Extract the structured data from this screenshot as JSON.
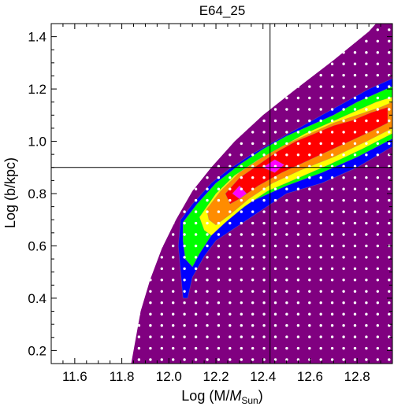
{
  "chart_data": {
    "type": "heatmap",
    "title": "E64_25",
    "xlabel_main": "Log (M/",
    "xlabel_italic": "M",
    "xlabel_sub": "Sun",
    "xlabel_close": ")",
    "ylabel": "Log (b/kpc)",
    "xlim": [
      11.5,
      12.95
    ],
    "ylim": [
      0.15,
      1.45
    ],
    "x_ticks": [
      "11.6",
      "11.8",
      "12.0",
      "12.2",
      "12.4",
      "12.6",
      "12.8"
    ],
    "y_ticks": [
      "0.2",
      "0.4",
      "0.6",
      "0.8",
      "1.0",
      "1.2",
      "1.4"
    ],
    "reference_lines": {
      "x": 12.43,
      "y": 0.9
    },
    "grid": false,
    "dot_grid": {
      "x_start": 11.68,
      "x_step": 0.0483,
      "y_start": 0.165,
      "y_step": 0.0435,
      "color": "#ffffff"
    },
    "allowed_region": {
      "color": "#800080",
      "boundary": [
        [
          11.84,
          0.15
        ],
        [
          11.86,
          0.25
        ],
        [
          11.88,
          0.35
        ],
        [
          11.92,
          0.47
        ],
        [
          11.97,
          0.59
        ],
        [
          12.03,
          0.7
        ],
        [
          12.1,
          0.81
        ],
        [
          12.18,
          0.9
        ],
        [
          12.28,
          1.0
        ],
        [
          12.4,
          1.1
        ],
        [
          12.54,
          1.2
        ],
        [
          12.7,
          1.31
        ],
        [
          12.85,
          1.42
        ],
        [
          12.88,
          1.45
        ],
        [
          12.95,
          1.45
        ],
        [
          12.95,
          0.15
        ]
      ]
    },
    "contour_levels": [
      {
        "color": "#0000ff",
        "polygon": [
          [
            12.05,
            0.7
          ],
          [
            12.1,
            0.76
          ],
          [
            12.18,
            0.84
          ],
          [
            12.25,
            0.89
          ],
          [
            12.35,
            0.95
          ],
          [
            12.45,
            1.0
          ],
          [
            12.55,
            1.05
          ],
          [
            12.65,
            1.1
          ],
          [
            12.75,
            1.15
          ],
          [
            12.85,
            1.2
          ],
          [
            12.95,
            1.24
          ],
          [
            12.95,
            0.98
          ],
          [
            12.8,
            0.9
          ],
          [
            12.65,
            0.84
          ],
          [
            12.5,
            0.8
          ],
          [
            12.4,
            0.74
          ],
          [
            12.3,
            0.68
          ],
          [
            12.2,
            0.62
          ],
          [
            12.15,
            0.56
          ],
          [
            12.1,
            0.48
          ],
          [
            12.08,
            0.4
          ],
          [
            12.06,
            0.4
          ],
          [
            12.05,
            0.5
          ],
          [
            12.04,
            0.6
          ]
        ]
      },
      {
        "color": "#00ff00",
        "polygon": [
          [
            12.06,
            0.69
          ],
          [
            12.12,
            0.76
          ],
          [
            12.2,
            0.84
          ],
          [
            12.3,
            0.91
          ],
          [
            12.4,
            0.97
          ],
          [
            12.5,
            1.02
          ],
          [
            12.6,
            1.06
          ],
          [
            12.7,
            1.1
          ],
          [
            12.8,
            1.15
          ],
          [
            12.9,
            1.19
          ],
          [
            12.95,
            1.21
          ],
          [
            12.95,
            1.01
          ],
          [
            12.8,
            0.94
          ],
          [
            12.65,
            0.88
          ],
          [
            12.5,
            0.83
          ],
          [
            12.35,
            0.77
          ],
          [
            12.25,
            0.7
          ],
          [
            12.18,
            0.64
          ],
          [
            12.13,
            0.57
          ],
          [
            12.1,
            0.52
          ],
          [
            12.07,
            0.55
          ],
          [
            12.06,
            0.62
          ]
        ]
      },
      {
        "color": "#ffff00",
        "polygon": [
          [
            12.13,
            0.71
          ],
          [
            12.2,
            0.8
          ],
          [
            12.28,
            0.87
          ],
          [
            12.38,
            0.93
          ],
          [
            12.48,
            0.98
          ],
          [
            12.58,
            1.03
          ],
          [
            12.68,
            1.07
          ],
          [
            12.78,
            1.11
          ],
          [
            12.88,
            1.15
          ],
          [
            12.95,
            1.17
          ],
          [
            12.95,
            1.03
          ],
          [
            12.82,
            0.97
          ],
          [
            12.68,
            0.91
          ],
          [
            12.55,
            0.86
          ],
          [
            12.42,
            0.81
          ],
          [
            12.32,
            0.75
          ],
          [
            12.24,
            0.69
          ],
          [
            12.18,
            0.64
          ],
          [
            12.15,
            0.66
          ]
        ]
      },
      {
        "color": "#ff8c00",
        "polygon": [
          [
            12.16,
            0.74
          ],
          [
            12.22,
            0.81
          ],
          [
            12.3,
            0.88
          ],
          [
            12.4,
            0.94
          ],
          [
            12.5,
            0.99
          ],
          [
            12.6,
            1.03
          ],
          [
            12.7,
            1.07
          ],
          [
            12.8,
            1.1
          ],
          [
            12.9,
            1.13
          ],
          [
            12.95,
            1.15
          ],
          [
            12.95,
            1.05
          ],
          [
            12.84,
            1.0
          ],
          [
            12.7,
            0.94
          ],
          [
            12.56,
            0.89
          ],
          [
            12.44,
            0.84
          ],
          [
            12.34,
            0.78
          ],
          [
            12.26,
            0.72
          ],
          [
            12.2,
            0.68
          ],
          [
            12.17,
            0.7
          ]
        ]
      },
      {
        "color": "#ff0000",
        "polygon": [
          [
            12.24,
            0.8
          ],
          [
            12.3,
            0.86
          ],
          [
            12.38,
            0.91
          ],
          [
            12.46,
            0.96
          ],
          [
            12.54,
            1.0
          ],
          [
            12.62,
            1.03
          ],
          [
            12.7,
            1.06
          ],
          [
            12.78,
            1.08
          ],
          [
            12.86,
            1.11
          ],
          [
            12.93,
            1.13
          ],
          [
            12.93,
            1.07
          ],
          [
            12.84,
            1.03
          ],
          [
            12.72,
            0.98
          ],
          [
            12.6,
            0.93
          ],
          [
            12.48,
            0.88
          ],
          [
            12.38,
            0.83
          ],
          [
            12.3,
            0.78
          ],
          [
            12.26,
            0.76
          ]
        ]
      },
      {
        "color": "#ff00ff",
        "polygon": [
          [
            12.27,
            0.8
          ],
          [
            12.3,
            0.83
          ],
          [
            12.33,
            0.8
          ],
          [
            12.3,
            0.78
          ]
        ]
      },
      {
        "color": "#ff00ff",
        "polygon": [
          [
            12.4,
            0.9
          ],
          [
            12.45,
            0.93
          ],
          [
            12.49,
            0.91
          ],
          [
            12.45,
            0.88
          ]
        ]
      }
    ]
  }
}
